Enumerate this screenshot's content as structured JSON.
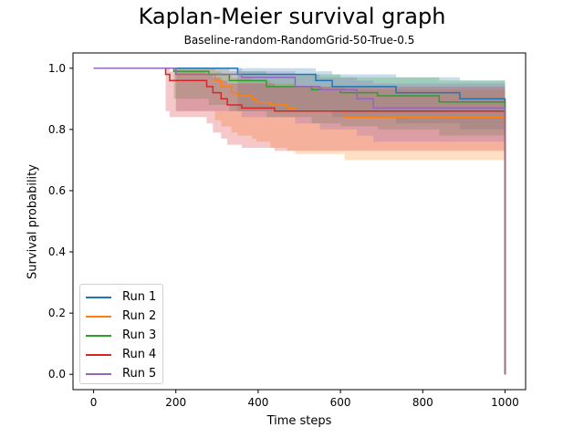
{
  "chart_data": {
    "type": "line",
    "title": "Kaplan-Meier survival graph",
    "subtitle": "Baseline-random-RandomGrid-50-True-0.5",
    "xlabel": "Time steps",
    "ylabel": "Survival probability",
    "xlim": [
      -50,
      1050
    ],
    "ylim": [
      -0.05,
      1.05
    ],
    "xticks": [
      0,
      200,
      400,
      600,
      800,
      1000
    ],
    "yticks": [
      0.0,
      0.2,
      0.4,
      0.6,
      0.8,
      1.0
    ],
    "xtick_labels": [
      "0",
      "200",
      "400",
      "600",
      "800",
      "1000"
    ],
    "ytick_labels": [
      "0.0",
      "0.2",
      "0.4",
      "0.6",
      "0.8",
      "1.0"
    ],
    "legend_position": "lower-left",
    "grid": false,
    "series": [
      {
        "name": "Run 1",
        "color": "#1f77b4",
        "x": [
          0,
          350,
          540,
          580,
          735,
          890,
          1000,
          1000
        ],
        "y": [
          1.0,
          0.98,
          0.96,
          0.94,
          0.92,
          0.9,
          0.88,
          0.0
        ],
        "ci_lower": [
          1.0,
          0.86,
          0.86,
          0.84,
          0.82,
          0.8,
          0.78,
          0.78
        ],
        "ci_upper": [
          1.0,
          1.0,
          0.99,
          0.98,
          0.97,
          0.96,
          0.95,
          0.95
        ]
      },
      {
        "name": "Run 2",
        "color": "#ff7f0e",
        "x": [
          0,
          200,
          295,
          310,
          335,
          350,
          385,
          395,
          430,
          470,
          490,
          610,
          1000,
          1000
        ],
        "y": [
          1.0,
          0.98,
          0.96,
          0.94,
          0.92,
          0.91,
          0.9,
          0.89,
          0.88,
          0.87,
          0.86,
          0.84,
          0.84,
          0.0
        ],
        "ci_lower": [
          1.0,
          0.86,
          0.83,
          0.81,
          0.79,
          0.78,
          0.77,
          0.76,
          0.74,
          0.73,
          0.72,
          0.7,
          0.7,
          0.7
        ],
        "ci_upper": [
          1.0,
          1.0,
          0.99,
          0.98,
          0.97,
          0.97,
          0.96,
          0.96,
          0.95,
          0.95,
          0.94,
          0.93,
          0.93,
          0.93
        ]
      },
      {
        "name": "Run 3",
        "color": "#2ca02c",
        "x": [
          0,
          195,
          280,
          330,
          420,
          530,
          600,
          690,
          840,
          1000,
          1000
        ],
        "y": [
          1.0,
          0.99,
          0.98,
          0.96,
          0.94,
          0.93,
          0.92,
          0.91,
          0.89,
          0.87,
          0.0
        ],
        "ci_lower": [
          1.0,
          0.9,
          0.88,
          0.86,
          0.84,
          0.82,
          0.81,
          0.8,
          0.78,
          0.76,
          0.76
        ],
        "ci_upper": [
          1.0,
          1.0,
          1.0,
          0.99,
          0.98,
          0.98,
          0.97,
          0.97,
          0.96,
          0.95,
          0.95
        ]
      },
      {
        "name": "Run 4",
        "color": "#d62728",
        "x": [
          0,
          175,
          185,
          200,
          275,
          290,
          310,
          325,
          360,
          440,
          520,
          620,
          1000,
          1000
        ],
        "y": [
          1.0,
          0.98,
          0.96,
          0.96,
          0.94,
          0.92,
          0.9,
          0.88,
          0.87,
          0.86,
          0.86,
          0.86,
          0.86,
          0.0
        ],
        "ci_lower": [
          1.0,
          0.86,
          0.84,
          0.84,
          0.82,
          0.79,
          0.77,
          0.75,
          0.74,
          0.73,
          0.73,
          0.73,
          0.73,
          0.73
        ],
        "ci_upper": [
          1.0,
          1.0,
          0.99,
          0.99,
          0.98,
          0.97,
          0.96,
          0.95,
          0.95,
          0.94,
          0.94,
          0.94,
          0.94,
          0.94
        ]
      },
      {
        "name": "Run 5",
        "color": "#9467bd",
        "x": [
          0,
          200,
          360,
          490,
          550,
          640,
          680,
          1000,
          1000
        ],
        "y": [
          1.0,
          0.98,
          0.97,
          0.94,
          0.93,
          0.9,
          0.87,
          0.87,
          0.0
        ],
        "ci_lower": [
          1.0,
          0.86,
          0.84,
          0.82,
          0.8,
          0.78,
          0.76,
          0.76,
          0.76
        ],
        "ci_upper": [
          1.0,
          1.0,
          0.99,
          0.98,
          0.97,
          0.96,
          0.95,
          0.95,
          0.95
        ]
      }
    ]
  }
}
